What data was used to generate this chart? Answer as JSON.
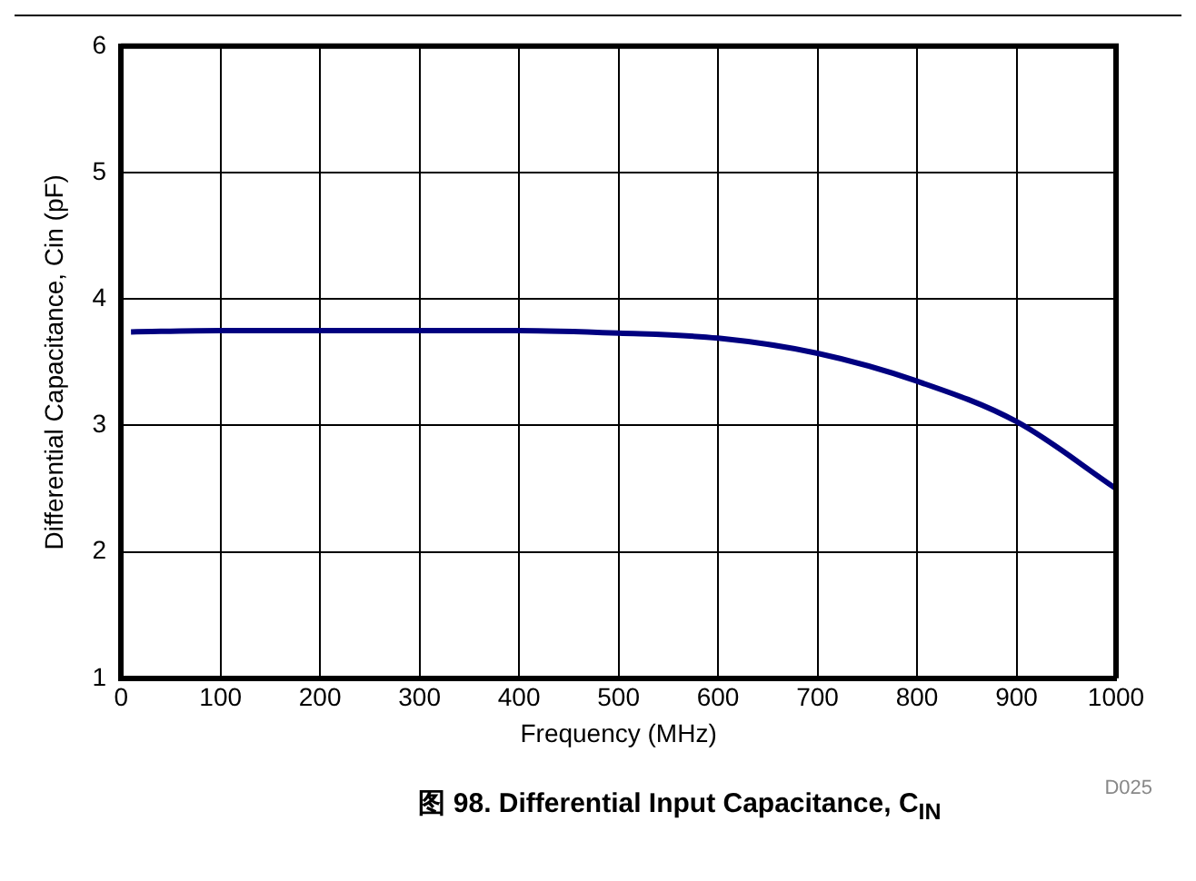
{
  "chart_data": {
    "type": "line",
    "title": "图 98. Differential Input Capacitance, C$_{IN}$",
    "xlabel": "Frequency (MHz)",
    "ylabel": "Differential Capacitance, Cin (pF)",
    "x": [
      10,
      100,
      200,
      300,
      400,
      500,
      600,
      700,
      800,
      900,
      1000
    ],
    "series": [
      {
        "color": "#000080",
        "values": [
          3.74,
          3.75,
          3.75,
          3.75,
          3.75,
          3.73,
          3.69,
          3.57,
          3.35,
          3.03,
          2.5
        ]
      }
    ],
    "xlim": [
      0,
      1000
    ],
    "xticks": [
      0,
      100,
      200,
      300,
      400,
      500,
      600,
      700,
      800,
      900,
      1000
    ],
    "ylim": [
      1,
      6
    ],
    "yticks": [
      1,
      2,
      3,
      4,
      5,
      6
    ],
    "grid": true,
    "marker": "none",
    "line_style": "solid",
    "annotations": [
      "D025"
    ]
  }
}
